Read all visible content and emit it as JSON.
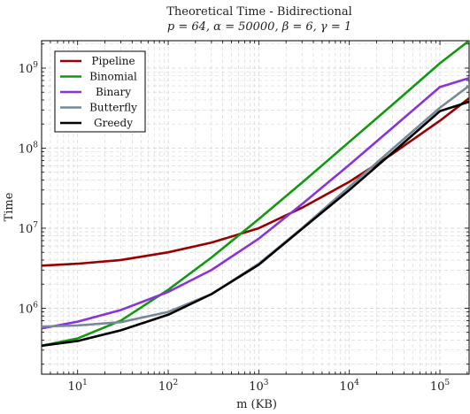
{
  "chart_data": {
    "type": "line",
    "title": "Theoretical Time - Bidirectional",
    "subtitle": "p = 64, α = 50000, β = 6, γ = 1",
    "xlabel": "m (KB)",
    "ylabel": "Time",
    "x_scale": "log",
    "y_scale": "log",
    "xlim": [
      4,
      210000
    ],
    "ylim": [
      150000,
      2200000000
    ],
    "grid": true,
    "legend_position": "top-left",
    "x_ticks": [
      {
        "value": 10,
        "base": "10",
        "exp": "1"
      },
      {
        "value": 100,
        "base": "10",
        "exp": "2"
      },
      {
        "value": 1000,
        "base": "10",
        "exp": "3"
      },
      {
        "value": 10000,
        "base": "10",
        "exp": "4"
      },
      {
        "value": 100000,
        "base": "10",
        "exp": "5"
      }
    ],
    "y_ticks": [
      {
        "value": 1000000,
        "base": "10",
        "exp": "6"
      },
      {
        "value": 10000000,
        "base": "10",
        "exp": "7"
      },
      {
        "value": 100000000,
        "base": "10",
        "exp": "8"
      },
      {
        "value": 1000000000,
        "base": "10",
        "exp": "9"
      }
    ],
    "x": [
      4,
      10,
      30,
      100,
      300,
      1000,
      3000,
      10000,
      30000,
      100000,
      210000
    ],
    "series": [
      {
        "name": "Pipeline",
        "color": "#990000",
        "values": [
          3400000,
          3600000,
          4000000,
          5000000,
          6600000,
          10000000,
          18000000,
          38000000,
          85000000,
          220000000,
          420000000
        ]
      },
      {
        "name": "Binomial",
        "color": "#119911",
        "values": [
          340000,
          420000,
          700000,
          1700000,
          4300000,
          13000000,
          37000000,
          120000000,
          350000000,
          1150000000,
          2200000000
        ]
      },
      {
        "name": "Binary",
        "color": "#8833dd",
        "values": [
          560000,
          680000,
          950000,
          1600000,
          3000000,
          7400000,
          20000000,
          62000000,
          180000000,
          580000000,
          750000000
        ]
      },
      {
        "name": "Butterfly",
        "color": "#778899",
        "values": [
          590000,
          610000,
          670000,
          900000,
          1500000,
          3600000,
          10000000,
          33000000,
          98000000,
          320000000,
          600000000
        ]
      },
      {
        "name": "Greedy",
        "color": "#000000",
        "values": [
          340000,
          390000,
          530000,
          830000,
          1500000,
          3500000,
          9800000,
          30000000,
          88000000,
          290000000,
          380000000
        ]
      }
    ]
  }
}
